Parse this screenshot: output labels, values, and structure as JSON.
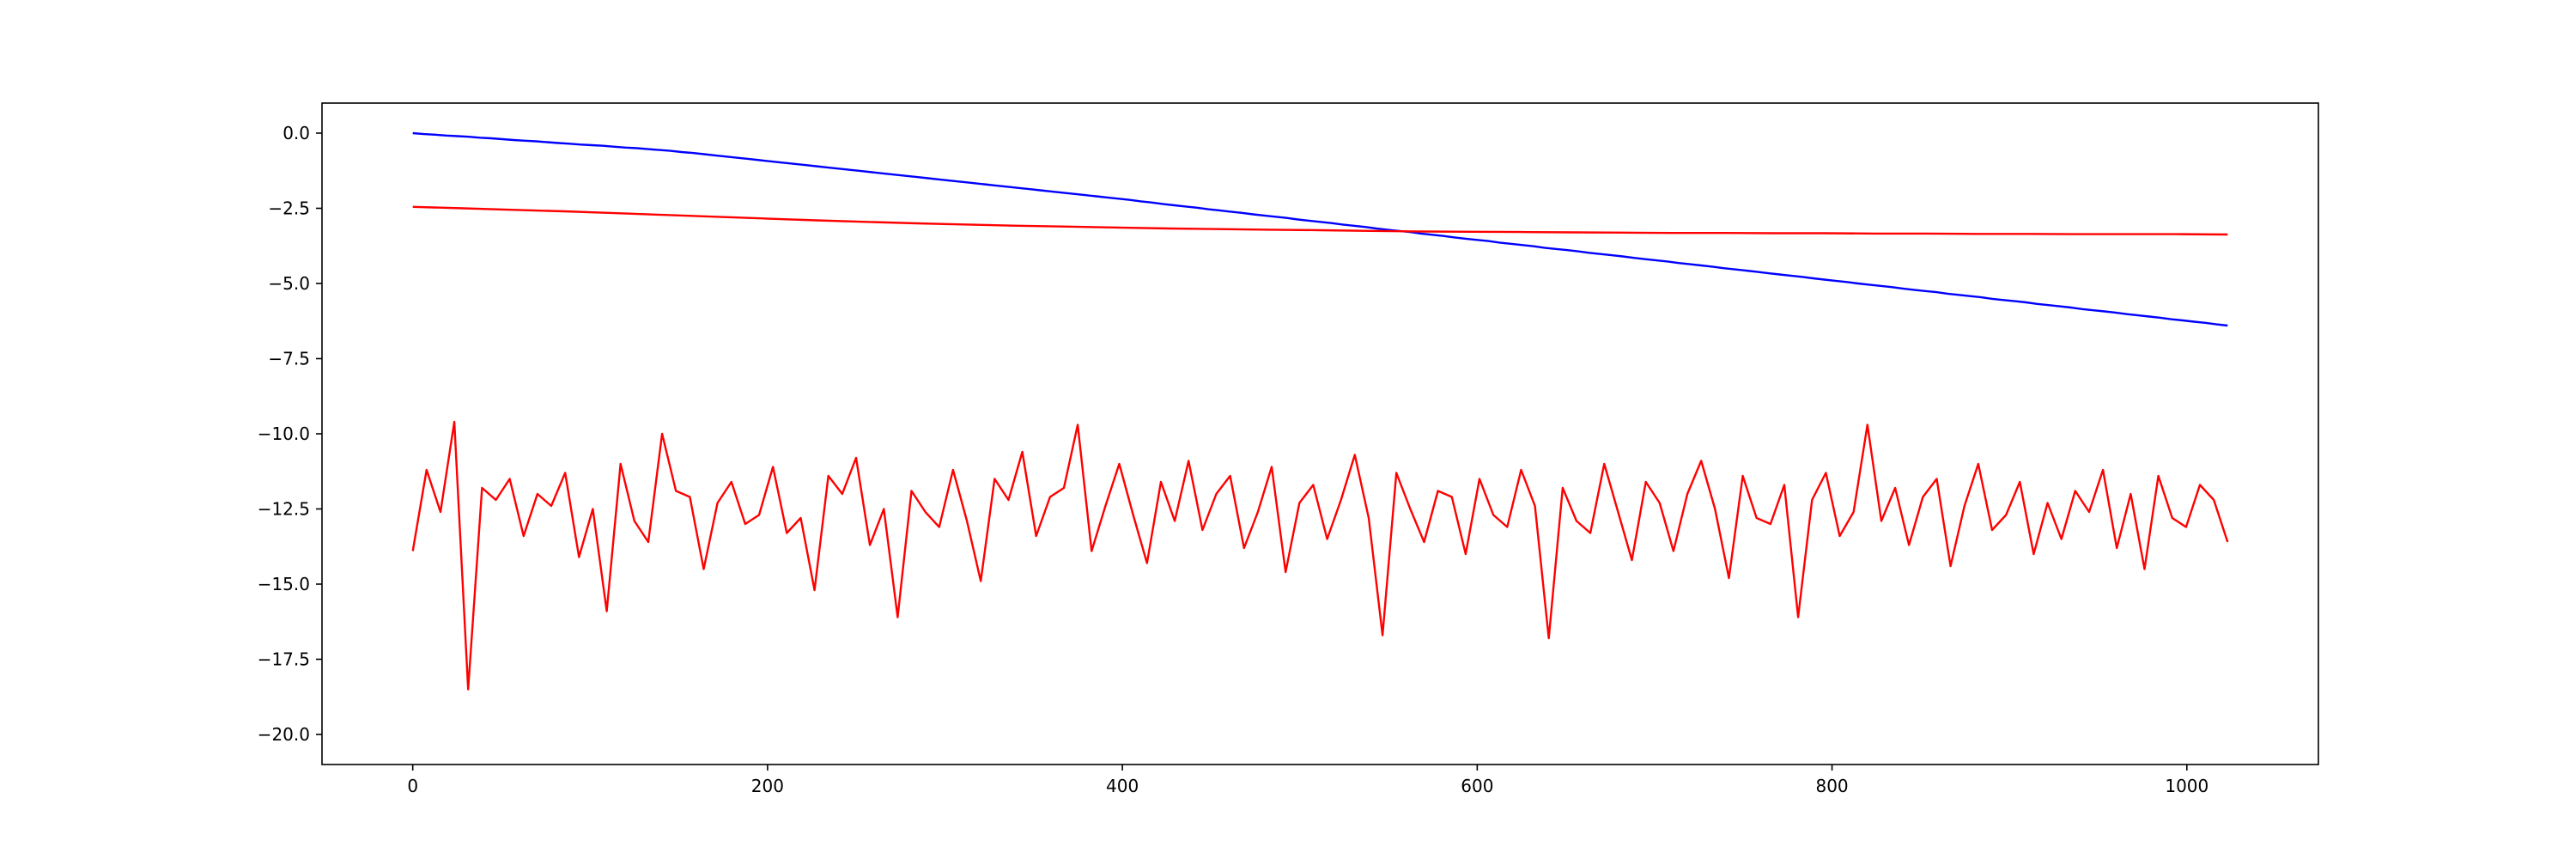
{
  "chart_data": {
    "type": "line",
    "title": "",
    "xlabel": "",
    "ylabel": "",
    "xlim": [
      -51.15,
      1074.15
    ],
    "ylim": [
      -21.0,
      1.0
    ],
    "grid": false,
    "legend": "none",
    "x_ticks": [
      0,
      200,
      400,
      600,
      800,
      1000
    ],
    "x_tick_labels": [
      "0",
      "200",
      "400",
      "600",
      "800",
      "1000"
    ],
    "y_ticks": [
      0.0,
      -2.5,
      -5.0,
      -7.5,
      -10.0,
      -12.5,
      -15.0,
      -17.5,
      -20.0
    ],
    "y_tick_labels": [
      "0.0",
      "−2.5",
      "−5.0",
      "−7.5",
      "−10.0",
      "−12.5",
      "−15.0",
      "−17.5",
      "−20.0"
    ],
    "series": [
      {
        "color": "#0000ff",
        "x_range": [
          0,
          1023
        ],
        "values": [
          0.0,
          -0.03,
          -0.05,
          -0.08,
          -0.1,
          -0.12,
          -0.15,
          -0.17,
          -0.2,
          -0.23,
          -0.25,
          -0.27,
          -0.3,
          -0.33,
          -0.35,
          -0.38,
          -0.4,
          -0.42,
          -0.45,
          -0.48,
          -0.5,
          -0.53,
          -0.56,
          -0.59,
          -0.63,
          -0.66,
          -0.7,
          -0.74,
          -0.78,
          -0.82,
          -0.86,
          -0.9,
          -0.94,
          -0.98,
          -1.02,
          -1.06,
          -1.1,
          -1.14,
          -1.18,
          -1.22,
          -1.26,
          -1.3,
          -1.34,
          -1.38,
          -1.42,
          -1.46,
          -1.5,
          -1.54,
          -1.58,
          -1.62,
          -1.66,
          -1.7,
          -1.74,
          -1.78,
          -1.82,
          -1.86,
          -1.9,
          -1.94,
          -1.98,
          -2.02,
          -2.06,
          -2.1,
          -2.14,
          -2.18,
          -2.22,
          -2.27,
          -2.31,
          -2.36,
          -2.4,
          -2.44,
          -2.48,
          -2.53,
          -2.57,
          -2.61,
          -2.65,
          -2.7,
          -2.74,
          -2.78,
          -2.82,
          -2.87,
          -2.91,
          -2.95,
          -2.99,
          -3.04,
          -3.08,
          -3.12,
          -3.17,
          -3.21,
          -3.25,
          -3.29,
          -3.34,
          -3.38,
          -3.42,
          -3.47,
          -3.51,
          -3.55,
          -3.59,
          -3.64,
          -3.68,
          -3.72,
          -3.76,
          -3.81,
          -3.85,
          -3.89,
          -3.93,
          -3.98,
          -4.02,
          -4.06,
          -4.1,
          -4.15,
          -4.19,
          -4.23,
          -4.27,
          -4.32,
          -4.36,
          -4.4,
          -4.44,
          -4.49,
          -4.53,
          -4.57,
          -4.61,
          -4.66,
          -4.7,
          -4.74,
          -4.78,
          -4.83,
          -4.87,
          -4.91,
          -4.95,
          -5.0,
          -5.04,
          -5.08,
          -5.12,
          -5.17,
          -5.21,
          -5.25,
          -5.29,
          -5.34,
          -5.38,
          -5.42,
          -5.46,
          -5.51,
          -5.55,
          -5.59,
          -5.63,
          -5.68,
          -5.72,
          -5.76,
          -5.8,
          -5.85,
          -5.89,
          -5.93,
          -5.97,
          -6.02,
          -6.06,
          -6.1,
          -6.14,
          -6.19,
          -6.23,
          -6.27,
          -6.31,
          -6.36,
          -6.4
        ]
      },
      {
        "color": "#ff0000",
        "x_range": [
          0,
          1023
        ],
        "values": [
          -2.45,
          -2.5,
          -2.55,
          -2.6,
          -2.66,
          -2.72,
          -2.78,
          -2.84,
          -2.9,
          -2.95,
          -3.0,
          -3.04,
          -3.08,
          -3.11,
          -3.14,
          -3.17,
          -3.19,
          -3.21,
          -3.23,
          -3.25,
          -3.27,
          -3.28,
          -3.29,
          -3.3,
          -3.31,
          -3.32,
          -3.32,
          -3.33,
          -3.33,
          -3.34,
          -3.34,
          -3.35,
          -3.35,
          -3.36,
          -3.36,
          -3.36,
          -3.37
        ]
      },
      {
        "color": "#ff0000",
        "x_range": [
          0,
          1023
        ],
        "values": [
          -13.9,
          -11.2,
          -12.6,
          -9.6,
          -18.5,
          -11.8,
          -12.2,
          -11.5,
          -13.4,
          -12.0,
          -12.4,
          -11.3,
          -14.1,
          -12.5,
          -15.9,
          -11.0,
          -12.9,
          -13.6,
          -10.0,
          -11.9,
          -12.1,
          -14.5,
          -12.3,
          -11.6,
          -13.0,
          -12.7,
          -11.1,
          -13.3,
          -12.8,
          -15.2,
          -11.4,
          -12.0,
          -10.8,
          -13.7,
          -12.5,
          -16.1,
          -11.9,
          -12.6,
          -13.1,
          -11.2,
          -12.9,
          -14.9,
          -11.5,
          -12.2,
          -10.6,
          -13.4,
          -12.1,
          -11.8,
          -9.7,
          -13.9,
          -12.4,
          -11.0,
          -12.7,
          -14.3,
          -11.6,
          -12.9,
          -10.9,
          -13.2,
          -12.0,
          -11.4,
          -13.8,
          -12.6,
          -11.1,
          -14.6,
          -12.3,
          -11.7,
          -13.5,
          -12.2,
          -10.7,
          -12.8,
          -16.7,
          -11.3,
          -12.5,
          -13.6,
          -11.9,
          -12.1,
          -14.0,
          -11.5,
          -12.7,
          -13.1,
          -11.2,
          -12.4,
          -16.8,
          -11.8,
          -12.9,
          -13.3,
          -11.0,
          -12.6,
          -14.2,
          -11.6,
          -12.3,
          -13.9,
          -12.0,
          -10.9,
          -12.5,
          -14.8,
          -11.4,
          -12.8,
          -13.0,
          -11.7,
          -16.1,
          -12.2,
          -11.3,
          -13.4,
          -12.6,
          -9.7,
          -12.9,
          -11.8,
          -13.7,
          -12.1,
          -11.5,
          -14.4,
          -12.4,
          -11.0,
          -13.2,
          -12.7,
          -11.6,
          -14.0,
          -12.3,
          -13.5,
          -11.9,
          -12.6,
          -11.2,
          -13.8,
          -12.0,
          -14.5,
          -11.4,
          -12.8,
          -13.1,
          -11.7,
          -12.2,
          -13.6
        ]
      }
    ]
  }
}
